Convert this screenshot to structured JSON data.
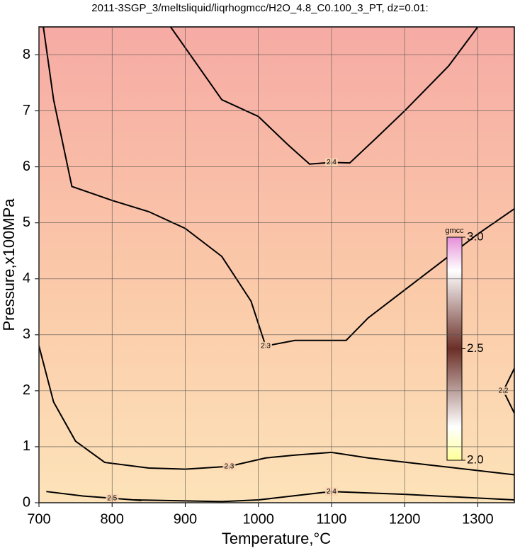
{
  "chart_data": {
    "type": "contour",
    "title": "2011-3SGP_3/meltsliquid/liqrhogmcc/H2O_4.8_C0.100_3_PT, dz=0.01:",
    "x_label": "Temperature,°C",
    "y_label": "Pressure,x100MPa",
    "xlim": [
      700,
      1350
    ],
    "ylim": [
      0,
      8.5
    ],
    "xticks": [
      700,
      800,
      900,
      1000,
      1100,
      1200,
      1300
    ],
    "yticks": [
      0,
      1,
      2,
      3,
      4,
      5,
      6,
      7,
      8
    ],
    "grid": true,
    "contours": [
      {
        "level": 2.4,
        "x": [
          880,
          950,
          1000,
          1040,
          1070,
          1100,
          1125,
          1160,
          1200,
          1260,
          1300
        ],
        "y": [
          8.5,
          7.2,
          6.9,
          6.4,
          6.05,
          6.08,
          6.07,
          6.5,
          7.0,
          7.8,
          8.5
        ]
      },
      {
        "level": 2.3,
        "x": [
          706,
          720,
          745,
          800,
          850,
          900,
          950,
          990,
          1010,
          1050,
          1120,
          1150,
          1200,
          1250,
          1300,
          1350
        ],
        "y": [
          8.5,
          7.2,
          5.65,
          5.4,
          5.2,
          4.9,
          4.4,
          3.6,
          2.8,
          2.9,
          2.9,
          3.3,
          3.8,
          4.3,
          4.8,
          5.25
        ]
      },
      {
        "level": 2.3,
        "x": [
          700,
          720,
          750,
          790,
          850,
          900,
          960,
          1010,
          1050,
          1100,
          1150,
          1250,
          1350
        ],
        "y": [
          2.8,
          1.8,
          1.1,
          0.72,
          0.62,
          0.6,
          0.65,
          0.8,
          0.85,
          0.9,
          0.8,
          0.65,
          0.5
        ]
      },
      {
        "level": 2.4,
        "x": [
          830,
          950,
          1000,
          1100,
          1200,
          1350
        ],
        "y": [
          0.05,
          0.02,
          0.05,
          0.2,
          0.15,
          0.05
        ]
      },
      {
        "level": 2.5,
        "x": [
          710,
          760,
          800,
          840
        ],
        "y": [
          0.2,
          0.12,
          0.08,
          0.04
        ]
      },
      {
        "level": 2.2,
        "x": [
          1350,
          1335,
          1350
        ],
        "y": [
          2.4,
          2.0,
          1.6
        ]
      }
    ],
    "colorbar": {
      "label": "gmcc",
      "lim": [
        2.0,
        3.0
      ],
      "ticks": [
        {
          "value": 2.0,
          "label": "2.0"
        },
        2.5,
        {
          "value": 3.0,
          "label": "3.0"
        }
      ]
    }
  }
}
